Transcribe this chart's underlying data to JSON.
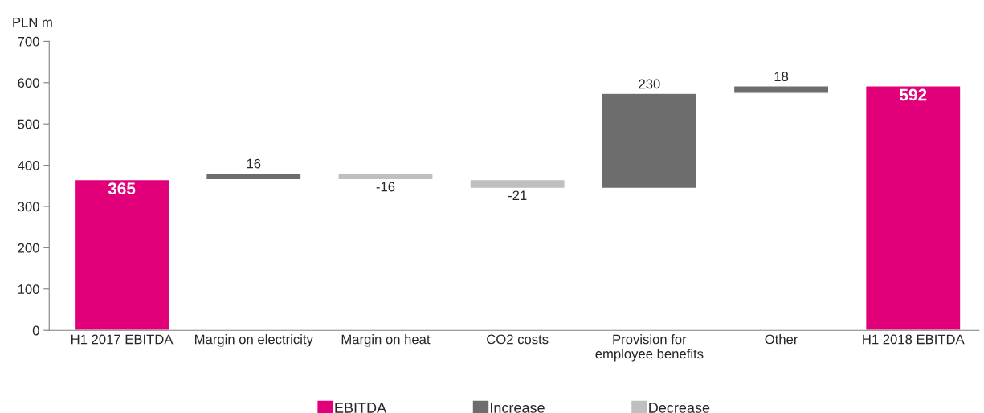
{
  "chart_data": {
    "type": "bar",
    "ylabel": "PLN m",
    "categories": [
      "H1 2017 EBITDA",
      "Margin on electricity",
      "Margin on heat",
      "CO2 costs",
      "Provision for\nemployee benefits",
      "Other",
      "H1 2018 EBITDA"
    ],
    "series": [
      {
        "name": "EBITDA",
        "color": "#e2007a",
        "values": [
          365,
          null,
          null,
          null,
          null,
          null,
          592
        ],
        "base": [
          0,
          null,
          null,
          null,
          null,
          null,
          0
        ]
      },
      {
        "name": "Increase",
        "color": "#6d6d6d",
        "values": [
          null,
          16,
          null,
          null,
          230,
          18,
          null
        ],
        "base": [
          null,
          365,
          null,
          null,
          344,
          574,
          null
        ]
      },
      {
        "name": "Decrease",
        "color": "#bfbfbf",
        "values": [
          null,
          null,
          -16,
          -21,
          null,
          null,
          null
        ],
        "base": [
          null,
          null,
          381,
          365,
          null,
          null,
          null
        ]
      }
    ],
    "ylim": [
      0,
      700
    ],
    "yticks": [
      0,
      100,
      200,
      300,
      400,
      500,
      600,
      700
    ],
    "grid": false,
    "legend": "bottom",
    "data_labels": true
  }
}
